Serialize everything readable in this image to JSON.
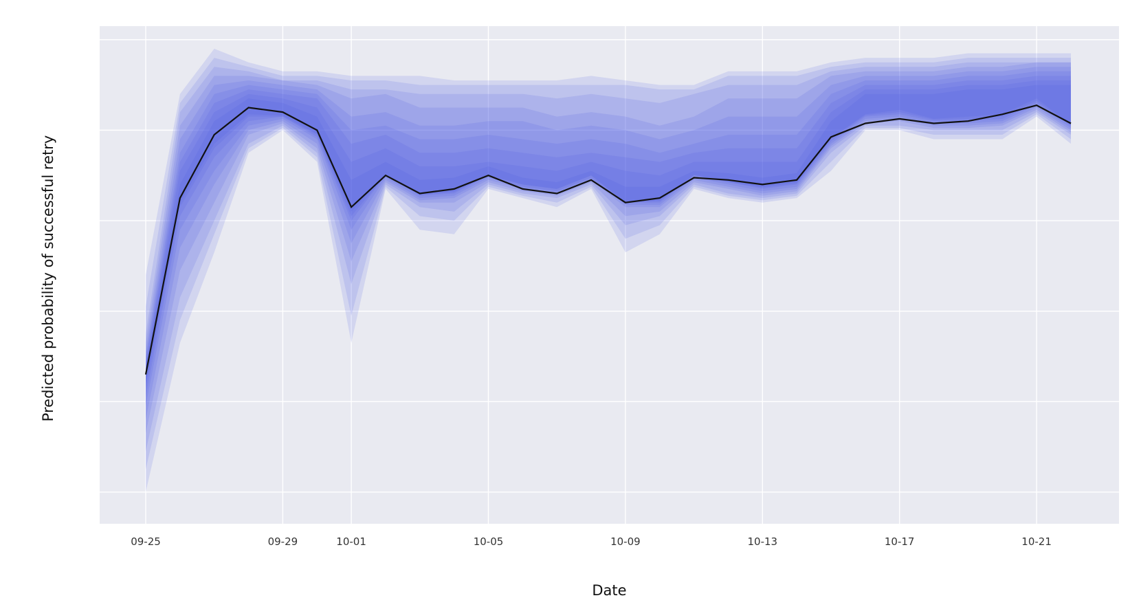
{
  "chart_data": {
    "type": "line",
    "xlabel": "Date",
    "ylabel": "Predicted probability of successful retry",
    "x_tick_labels": [
      "09-25",
      "09-29",
      "10-01",
      "10-05",
      "10-09",
      "10-13",
      "10-17",
      "10-21"
    ],
    "x_tick_days": [
      0,
      4,
      6,
      10,
      14,
      18,
      22,
      26
    ],
    "x": [
      0,
      1,
      2,
      3,
      4,
      5,
      6,
      7,
      8,
      9,
      10,
      11,
      12,
      13,
      14,
      15,
      16,
      17,
      18,
      19,
      20,
      21,
      22,
      23,
      24,
      25,
      26,
      27
    ],
    "ylim": [
      0,
      1.1
    ],
    "y_gridlines": [
      0.07,
      0.27,
      0.47,
      0.67,
      0.87,
      1.07
    ],
    "y_tick_labels_visible": false,
    "grid": true,
    "colors": {
      "band": "#4656e4",
      "median_line": "#111111",
      "plot_background": "#e9eaf1",
      "grid": "#ffffff"
    },
    "median": [
      0.33,
      0.72,
      0.86,
      0.92,
      0.91,
      0.87,
      0.7,
      0.77,
      0.73,
      0.74,
      0.77,
      0.74,
      0.73,
      0.76,
      0.71,
      0.72,
      0.765,
      0.76,
      0.75,
      0.76,
      0.855,
      0.885,
      0.895,
      0.885,
      0.89,
      0.905,
      0.925,
      0.885
    ],
    "bands": [
      {
        "level": 0.95,
        "upper": [
          0.55,
          0.95,
          1.05,
          1.02,
          1.0,
          1.0,
          0.99,
          0.99,
          0.99,
          0.98,
          0.98,
          0.98,
          0.98,
          0.99,
          0.98,
          0.97,
          0.97,
          1.0,
          1.0,
          1.0,
          1.02,
          1.03,
          1.03,
          1.03,
          1.04,
          1.04,
          1.04,
          1.04
        ],
        "lower": [
          0.07,
          0.4,
          0.6,
          0.82,
          0.87,
          0.8,
          0.4,
          0.74,
          0.65,
          0.64,
          0.74,
          0.72,
          0.7,
          0.74,
          0.6,
          0.64,
          0.74,
          0.72,
          0.71,
          0.72,
          0.78,
          0.87,
          0.87,
          0.85,
          0.85,
          0.85,
          0.9,
          0.84
        ]
      },
      {
        "level": 0.9,
        "upper": [
          0.48,
          0.93,
          1.03,
          1.01,
          0.99,
          0.99,
          0.98,
          0.98,
          0.97,
          0.97,
          0.97,
          0.97,
          0.97,
          0.97,
          0.97,
          0.96,
          0.96,
          0.99,
          0.99,
          0.99,
          1.01,
          1.02,
          1.02,
          1.02,
          1.03,
          1.03,
          1.03,
          1.03
        ],
        "lower": [
          0.12,
          0.45,
          0.64,
          0.83,
          0.875,
          0.81,
          0.46,
          0.745,
          0.68,
          0.67,
          0.745,
          0.725,
          0.71,
          0.745,
          0.63,
          0.66,
          0.745,
          0.725,
          0.715,
          0.725,
          0.8,
          0.875,
          0.875,
          0.86,
          0.86,
          0.86,
          0.905,
          0.85
        ]
      },
      {
        "level": 0.8,
        "upper": [
          0.42,
          0.91,
          1.01,
          1.0,
          0.98,
          0.98,
          0.96,
          0.96,
          0.95,
          0.95,
          0.95,
          0.95,
          0.94,
          0.95,
          0.94,
          0.93,
          0.95,
          0.97,
          0.97,
          0.97,
          1.0,
          1.01,
          1.01,
          1.01,
          1.02,
          1.02,
          1.02,
          1.02
        ],
        "lower": [
          0.16,
          0.5,
          0.67,
          0.84,
          0.88,
          0.82,
          0.53,
          0.75,
          0.7,
          0.69,
          0.75,
          0.73,
          0.72,
          0.75,
          0.66,
          0.68,
          0.75,
          0.73,
          0.72,
          0.73,
          0.82,
          0.88,
          0.88,
          0.87,
          0.87,
          0.87,
          0.91,
          0.86
        ]
      },
      {
        "level": 0.7,
        "upper": [
          0.4,
          0.88,
          0.99,
          0.99,
          0.98,
          0.97,
          0.94,
          0.95,
          0.92,
          0.92,
          0.92,
          0.92,
          0.9,
          0.91,
          0.9,
          0.88,
          0.9,
          0.94,
          0.94,
          0.94,
          0.99,
          1.0,
          1.0,
          1.0,
          1.01,
          1.01,
          1.02,
          1.02
        ],
        "lower": [
          0.2,
          0.56,
          0.71,
          0.86,
          0.885,
          0.83,
          0.58,
          0.755,
          0.71,
          0.71,
          0.755,
          0.735,
          0.725,
          0.755,
          0.68,
          0.69,
          0.755,
          0.74,
          0.725,
          0.735,
          0.83,
          0.885,
          0.89,
          0.875,
          0.875,
          0.88,
          0.915,
          0.865
        ]
      },
      {
        "level": 0.6,
        "upper": [
          0.38,
          0.85,
          0.97,
          0.98,
          0.97,
          0.96,
          0.9,
          0.91,
          0.88,
          0.88,
          0.89,
          0.89,
          0.87,
          0.88,
          0.87,
          0.85,
          0.87,
          0.9,
          0.9,
          0.9,
          0.97,
          0.99,
          0.99,
          0.99,
          1.0,
          1.0,
          1.01,
          1.01
        ],
        "lower": [
          0.23,
          0.61,
          0.75,
          0.87,
          0.89,
          0.84,
          0.62,
          0.76,
          0.715,
          0.72,
          0.76,
          0.74,
          0.73,
          0.76,
          0.7,
          0.7,
          0.76,
          0.745,
          0.73,
          0.74,
          0.835,
          0.89,
          0.895,
          0.88,
          0.88,
          0.885,
          0.92,
          0.87
        ]
      },
      {
        "level": 0.5,
        "upper": [
          0.37,
          0.82,
          0.95,
          0.97,
          0.96,
          0.95,
          0.87,
          0.88,
          0.85,
          0.85,
          0.86,
          0.85,
          0.84,
          0.85,
          0.84,
          0.82,
          0.84,
          0.86,
          0.86,
          0.86,
          0.95,
          0.98,
          0.98,
          0.98,
          0.99,
          0.99,
          1.0,
          1.0
        ],
        "lower": [
          0.26,
          0.65,
          0.78,
          0.88,
          0.895,
          0.85,
          0.65,
          0.765,
          0.72,
          0.725,
          0.765,
          0.745,
          0.735,
          0.765,
          0.705,
          0.705,
          0.765,
          0.75,
          0.735,
          0.745,
          0.84,
          0.895,
          0.9,
          0.885,
          0.885,
          0.89,
          0.925,
          0.875
        ]
      },
      {
        "level": 0.4,
        "upper": [
          0.36,
          0.8,
          0.93,
          0.96,
          0.95,
          0.94,
          0.84,
          0.86,
          0.82,
          0.82,
          0.83,
          0.82,
          0.81,
          0.82,
          0.81,
          0.8,
          0.82,
          0.83,
          0.83,
          0.83,
          0.93,
          0.97,
          0.97,
          0.97,
          0.98,
          0.98,
          0.99,
          0.99
        ],
        "lower": [
          0.28,
          0.68,
          0.81,
          0.89,
          0.9,
          0.855,
          0.67,
          0.77,
          0.725,
          0.73,
          0.77,
          0.75,
          0.74,
          0.77,
          0.71,
          0.71,
          0.77,
          0.755,
          0.74,
          0.75,
          0.845,
          0.9,
          0.905,
          0.89,
          0.89,
          0.895,
          0.93,
          0.88
        ]
      },
      {
        "level": 0.3,
        "upper": [
          0.35,
          0.78,
          0.91,
          0.95,
          0.94,
          0.92,
          0.8,
          0.83,
          0.79,
          0.79,
          0.8,
          0.79,
          0.78,
          0.8,
          0.78,
          0.77,
          0.8,
          0.8,
          0.8,
          0.8,
          0.91,
          0.96,
          0.96,
          0.96,
          0.97,
          0.97,
          0.98,
          0.98
        ],
        "lower": [
          0.3,
          0.7,
          0.83,
          0.9,
          0.9,
          0.86,
          0.68,
          0.77,
          0.727,
          0.733,
          0.77,
          0.75,
          0.74,
          0.77,
          0.71,
          0.713,
          0.77,
          0.755,
          0.743,
          0.752,
          0.85,
          0.903,
          0.91,
          0.893,
          0.895,
          0.9,
          0.935,
          0.88
        ]
      },
      {
        "level": 0.2,
        "upper": [
          0.345,
          0.75,
          0.89,
          0.94,
          0.93,
          0.9,
          0.76,
          0.8,
          0.76,
          0.765,
          0.79,
          0.765,
          0.755,
          0.78,
          0.745,
          0.745,
          0.78,
          0.775,
          0.765,
          0.775,
          0.89,
          0.95,
          0.95,
          0.95,
          0.96,
          0.96,
          0.97,
          0.97
        ],
        "lower": [
          0.31,
          0.71,
          0.84,
          0.905,
          0.903,
          0.862,
          0.69,
          0.771,
          0.728,
          0.735,
          0.771,
          0.742,
          0.733,
          0.761,
          0.712,
          0.715,
          0.771,
          0.757,
          0.745,
          0.755,
          0.852,
          0.905,
          0.915,
          0.895,
          0.9,
          0.905,
          0.94,
          0.882
        ]
      }
    ]
  }
}
